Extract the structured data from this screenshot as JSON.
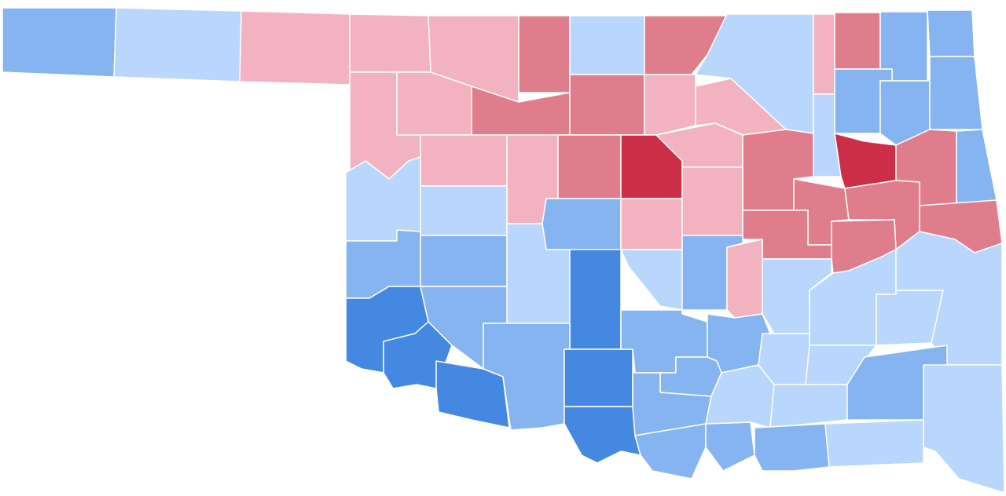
{
  "map": {
    "palette": {
      "dark-blue": "#4488e2",
      "mid-blue": "#86b4f0",
      "light-blue": "#b9d6fc",
      "light-red": "#f2b2bf",
      "mid-red": "#e07d8d",
      "dark-red": "#cc2e48"
    },
    "border_color": "#ffffff"
  }
}
